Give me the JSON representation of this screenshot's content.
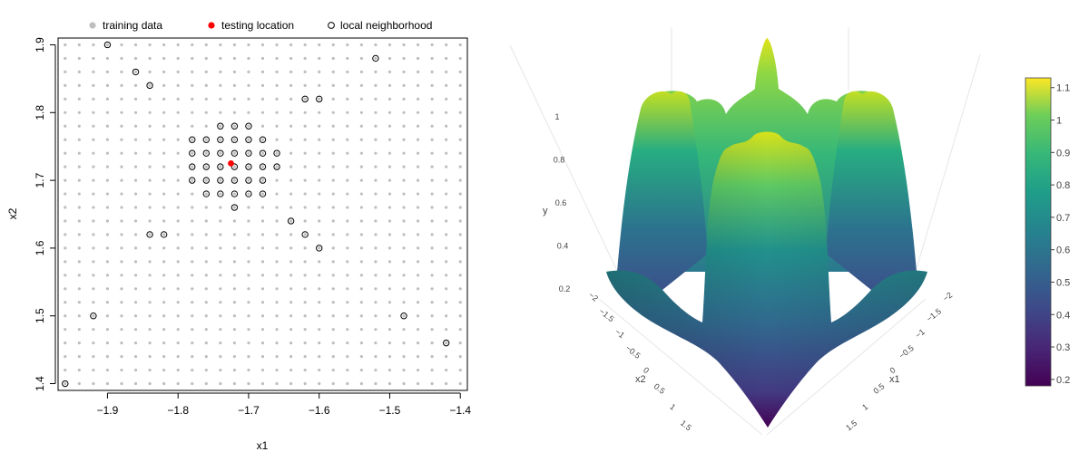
{
  "chart_data": [
    {
      "type": "scatter",
      "xlabel": "x1",
      "ylabel": "x2",
      "xlim": [
        -1.97,
        -1.39
      ],
      "ylim": [
        1.39,
        1.91
      ],
      "xticks": [
        -1.9,
        -1.8,
        -1.7,
        -1.6,
        -1.5,
        -1.4
      ],
      "xtick_labels": [
        "−1.9",
        "−1.8",
        "−1.7",
        "−1.6",
        "−1.5",
        "−1.4"
      ],
      "yticks": [
        1.4,
        1.5,
        1.6,
        1.7,
        1.8,
        1.9
      ],
      "ytick_labels": [
        "1.4",
        "1.5",
        "1.6",
        "1.7",
        "1.8",
        "1.9"
      ],
      "legend": {
        "placement": "top",
        "entries": [
          "training data",
          "testing location",
          "local neighborhood"
        ]
      },
      "colors": {
        "training": "#bebebe",
        "testing": "#ff0000",
        "neighborhood": "#000000"
      },
      "training_grid": {
        "x_from": -1.96,
        "x_to": -1.4,
        "y_from": 1.4,
        "y_to": 1.9,
        "step": 0.02
      },
      "testing_location": {
        "x": -1.725,
        "y": 1.725
      },
      "local_neighborhood": [
        {
          "x": -1.9,
          "y": 1.9
        },
        {
          "x": -1.52,
          "y": 1.88
        },
        {
          "x": -1.86,
          "y": 1.86
        },
        {
          "x": -1.84,
          "y": 1.84
        },
        {
          "x": -1.62,
          "y": 1.82
        },
        {
          "x": -1.6,
          "y": 1.82
        },
        {
          "x": -1.74,
          "y": 1.78
        },
        {
          "x": -1.72,
          "y": 1.78
        },
        {
          "x": -1.7,
          "y": 1.78
        },
        {
          "x": -1.78,
          "y": 1.76
        },
        {
          "x": -1.76,
          "y": 1.76
        },
        {
          "x": -1.74,
          "y": 1.76
        },
        {
          "x": -1.72,
          "y": 1.76
        },
        {
          "x": -1.7,
          "y": 1.76
        },
        {
          "x": -1.68,
          "y": 1.76
        },
        {
          "x": -1.78,
          "y": 1.74
        },
        {
          "x": -1.76,
          "y": 1.74
        },
        {
          "x": -1.74,
          "y": 1.74
        },
        {
          "x": -1.72,
          "y": 1.74
        },
        {
          "x": -1.7,
          "y": 1.74
        },
        {
          "x": -1.68,
          "y": 1.74
        },
        {
          "x": -1.66,
          "y": 1.74
        },
        {
          "x": -1.78,
          "y": 1.72
        },
        {
          "x": -1.76,
          "y": 1.72
        },
        {
          "x": -1.74,
          "y": 1.72
        },
        {
          "x": -1.72,
          "y": 1.72
        },
        {
          "x": -1.7,
          "y": 1.72
        },
        {
          "x": -1.68,
          "y": 1.72
        },
        {
          "x": -1.66,
          "y": 1.72
        },
        {
          "x": -1.78,
          "y": 1.7
        },
        {
          "x": -1.76,
          "y": 1.7
        },
        {
          "x": -1.74,
          "y": 1.7
        },
        {
          "x": -1.72,
          "y": 1.7
        },
        {
          "x": -1.7,
          "y": 1.7
        },
        {
          "x": -1.68,
          "y": 1.7
        },
        {
          "x": -1.76,
          "y": 1.68
        },
        {
          "x": -1.74,
          "y": 1.68
        },
        {
          "x": -1.72,
          "y": 1.68
        },
        {
          "x": -1.7,
          "y": 1.68
        },
        {
          "x": -1.68,
          "y": 1.68
        },
        {
          "x": -1.72,
          "y": 1.66
        },
        {
          "x": -1.64,
          "y": 1.64
        },
        {
          "x": -1.84,
          "y": 1.62
        },
        {
          "x": -1.82,
          "y": 1.62
        },
        {
          "x": -1.62,
          "y": 1.62
        },
        {
          "x": -1.6,
          "y": 1.6
        },
        {
          "x": -1.92,
          "y": 1.5
        },
        {
          "x": -1.48,
          "y": 1.5
        },
        {
          "x": -1.42,
          "y": 1.46
        },
        {
          "x": -1.96,
          "y": 1.4
        }
      ]
    },
    {
      "type": "surface3d",
      "xlabel": "x1",
      "ylabel": "x2",
      "zlabel": "y",
      "x_ticks": [
        "−2",
        "−1.5",
        "−1",
        "−0.5",
        "0",
        "0.5",
        "1",
        "1.5"
      ],
      "x2_ticks": [
        "−2",
        "−1.5",
        "−1",
        "−0.5",
        "0",
        "0.5",
        "1",
        "1.5"
      ],
      "z_ticks": [
        "0.2",
        "0.4",
        "0.6",
        "0.8",
        "1"
      ],
      "colorscale": "viridis",
      "colorbar": {
        "ticks": [
          "0.2",
          "0.3",
          "0.4",
          "0.5",
          "0.6",
          "0.7",
          "0.8",
          "0.9",
          "1",
          "1.1"
        ],
        "min": 0.18,
        "max": 1.13
      }
    }
  ]
}
